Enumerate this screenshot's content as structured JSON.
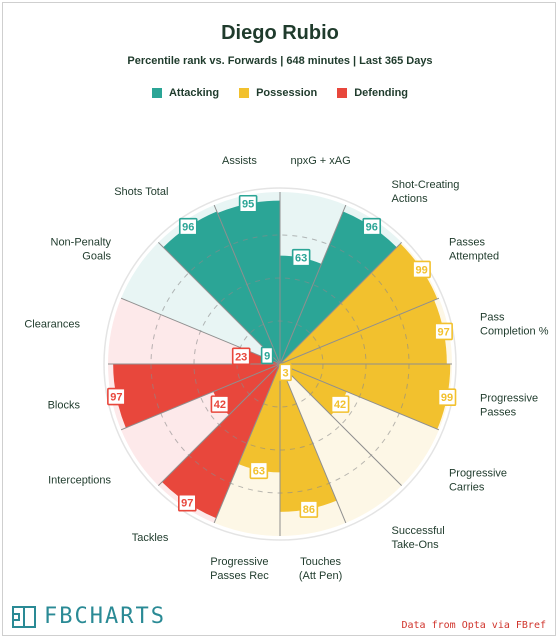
{
  "title": "Diego Rubio",
  "subtitle": "Percentile rank vs. Forwards | 648 minutes | Last 365 Days",
  "legend": [
    {
      "label": "Attacking",
      "color": "#2ba596"
    },
    {
      "label": "Possession",
      "color": "#f2c12e"
    },
    {
      "label": "Defending",
      "color": "#e8473c"
    }
  ],
  "colors": {
    "attacking": "#2ba596",
    "possession": "#f2c12e",
    "defending": "#e8473c",
    "attacking_bg": "#e8f5f4",
    "possession_bg": "#fdf7e6",
    "defending_bg": "#fde9ea",
    "label_text": "#1f3b2c"
  },
  "footer": {
    "logo": "FBCHARTS",
    "credit": "Data from Opta via FBref"
  },
  "chart_data": {
    "type": "radar",
    "radial_range": [
      0,
      100
    ],
    "gridlines": [
      25,
      50,
      75
    ],
    "grid": true,
    "legend_position": "top",
    "categories": [
      {
        "label": "npxG + xAG",
        "group": "attacking",
        "value": 63
      },
      {
        "label": "Shot-Creating Actions",
        "group": "attacking",
        "value": 96
      },
      {
        "label": "Passes Attempted",
        "group": "possession",
        "value": 99
      },
      {
        "label": "Pass Completion %",
        "group": "possession",
        "value": 97
      },
      {
        "label": "Progressive Passes",
        "group": "possession",
        "value": 99
      },
      {
        "label": "Progressive Carries",
        "group": "possession",
        "value": 42
      },
      {
        "label": "Successful Take-Ons",
        "group": "possession",
        "value": 3
      },
      {
        "label": "Touches (Att Pen)",
        "group": "possession",
        "value": 86
      },
      {
        "label": "Progressive Passes Rec",
        "group": "possession",
        "value": 63
      },
      {
        "label": "Tackles",
        "group": "defending",
        "value": 97
      },
      {
        "label": "Interceptions",
        "group": "defending",
        "value": 42
      },
      {
        "label": "Blocks",
        "group": "defending",
        "value": 97
      },
      {
        "label": "Clearances",
        "group": "defending",
        "value": 23
      },
      {
        "label": "Non-Penalty Goals",
        "group": "attacking",
        "value": 9
      },
      {
        "label": "Shots Total",
        "group": "attacking",
        "value": 96
      },
      {
        "label": "Assists",
        "group": "attacking",
        "value": 95
      }
    ]
  }
}
